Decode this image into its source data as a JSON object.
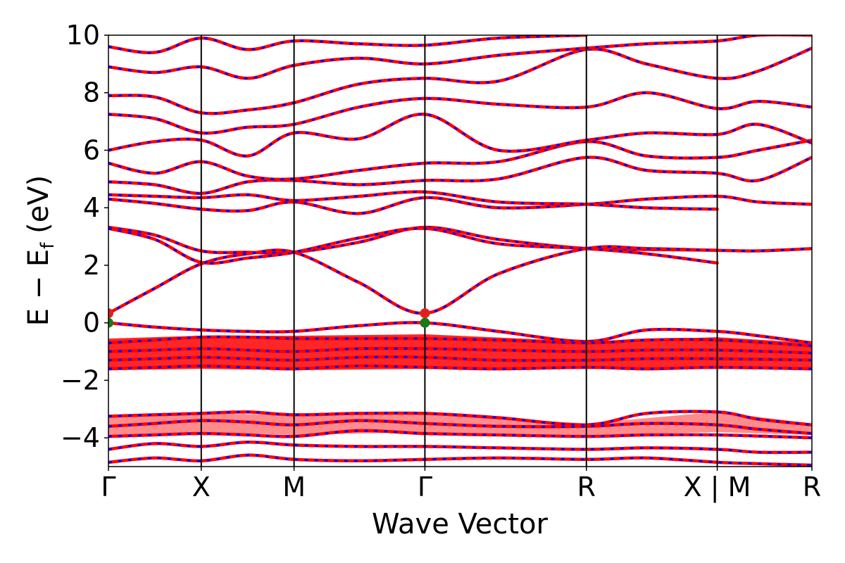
{
  "chart_data": {
    "type": "line",
    "title": "",
    "xlabel": "Wave Vector",
    "ylabel": "E − E_f (eV)",
    "ylabel_parts": {
      "main": "E − E",
      "sub": "f",
      "unit": " (eV)"
    },
    "ylim": [
      -5,
      10
    ],
    "yticks": [
      -4,
      -2,
      0,
      2,
      4,
      6,
      8,
      10
    ],
    "ytick_labels": [
      "−4",
      "−2",
      "0",
      "2",
      "4",
      "6",
      "8",
      "10"
    ],
    "xlim": [
      0,
      7.58
    ],
    "kpath": [
      {
        "label": "Γ",
        "x": 0
      },
      {
        "label": "X",
        "x": 1.0
      },
      {
        "label": "M",
        "x": 2.0
      },
      {
        "label": "Γ",
        "x": 3.41
      },
      {
        "label": "R",
        "x": 5.15
      },
      {
        "label": "X | M",
        "x": 6.56
      },
      {
        "label": "R",
        "x": 7.58
      }
    ],
    "grid": false,
    "colors": {
      "band_primary": "#ff0000",
      "band_dash": "#0000ff",
      "vbm_marker": "#1a7a1a",
      "cbm_marker": "#e02020"
    },
    "extrema": {
      "vbm": [
        {
          "x": 0,
          "y": 0.0
        },
        {
          "x": 3.41,
          "y": 0.0
        }
      ],
      "cbm": [
        {
          "x": 0,
          "y": 0.33
        },
        {
          "x": 3.41,
          "y": 0.33
        }
      ]
    },
    "series": [
      {
        "values": [
          [
            0,
            3.32
          ],
          [
            0.5,
            3.05
          ],
          [
            1.0,
            2.5
          ],
          [
            1.5,
            2.45
          ],
          [
            2.0,
            2.45
          ],
          [
            2.7,
            2.8
          ],
          [
            3.41,
            3.32
          ],
          [
            4.2,
            2.9
          ],
          [
            5.15,
            2.58
          ],
          [
            5.8,
            2.55
          ],
          [
            6.56,
            2.52
          ],
          [
            7.0,
            2.5
          ],
          [
            7.58,
            2.58
          ]
        ]
      },
      {
        "values": [
          [
            0,
            3.28
          ],
          [
            0.5,
            2.9
          ],
          [
            1.0,
            2.1
          ],
          [
            1.5,
            2.25
          ],
          [
            2.0,
            2.45
          ],
          [
            2.7,
            2.95
          ],
          [
            3.41,
            3.28
          ],
          [
            4.2,
            2.75
          ],
          [
            5.15,
            2.58
          ],
          [
            5.8,
            2.4
          ],
          [
            6.56,
            2.08
          ]
        ]
      },
      {
        "values": [
          [
            0,
            0.33
          ],
          [
            0.5,
            1.2
          ],
          [
            1.0,
            2.05
          ],
          [
            1.5,
            2.4
          ],
          [
            2.0,
            2.45
          ],
          [
            2.7,
            1.4
          ],
          [
            3.41,
            0.33
          ],
          [
            4.2,
            1.7
          ],
          [
            5.15,
            2.58
          ],
          [
            5.8,
            2.58
          ],
          [
            6.56,
            2.52
          ]
        ]
      },
      {
        "values": [
          [
            0,
            4.3
          ],
          [
            0.5,
            4.15
          ],
          [
            1.0,
            3.95
          ],
          [
            1.5,
            3.9
          ],
          [
            2.0,
            4.2
          ],
          [
            2.7,
            3.8
          ],
          [
            3.41,
            4.35
          ],
          [
            4.2,
            4.0
          ],
          [
            5.15,
            4.12
          ],
          [
            5.8,
            4.3
          ],
          [
            6.56,
            4.4
          ],
          [
            7.0,
            4.2
          ],
          [
            7.58,
            4.12
          ]
        ]
      },
      {
        "values": [
          [
            0,
            4.45
          ],
          [
            0.5,
            4.4
          ],
          [
            1.0,
            4.35
          ],
          [
            1.5,
            4.45
          ],
          [
            2.0,
            4.25
          ],
          [
            2.7,
            4.4
          ],
          [
            3.41,
            4.55
          ],
          [
            4.2,
            4.2
          ],
          [
            5.15,
            4.12
          ],
          [
            5.8,
            4.0
          ],
          [
            6.56,
            3.95
          ]
        ]
      },
      {
        "values": [
          [
            0,
            4.9
          ],
          [
            0.5,
            4.8
          ],
          [
            1.0,
            4.5
          ],
          [
            1.5,
            4.9
          ],
          [
            2.0,
            4.95
          ],
          [
            2.7,
            4.8
          ],
          [
            3.41,
            4.95
          ],
          [
            4.2,
            5.0
          ],
          [
            5.15,
            5.75
          ],
          [
            5.8,
            5.3
          ],
          [
            6.56,
            5.2
          ],
          [
            7.0,
            4.95
          ],
          [
            7.58,
            5.75
          ]
        ]
      },
      {
        "values": [
          [
            0,
            5.55
          ],
          [
            0.5,
            5.2
          ],
          [
            1.0,
            5.6
          ],
          [
            1.5,
            5.1
          ],
          [
            2.0,
            5.0
          ],
          [
            2.7,
            5.3
          ],
          [
            3.41,
            5.55
          ],
          [
            4.2,
            5.6
          ],
          [
            5.15,
            6.3
          ],
          [
            5.8,
            5.8
          ],
          [
            6.56,
            5.75
          ],
          [
            7.0,
            6.0
          ],
          [
            7.58,
            6.35
          ]
        ]
      },
      {
        "values": [
          [
            0,
            6.0
          ],
          [
            0.5,
            6.3
          ],
          [
            1.0,
            6.35
          ],
          [
            1.5,
            5.8
          ],
          [
            2.0,
            6.6
          ],
          [
            2.7,
            6.4
          ],
          [
            3.41,
            7.25
          ],
          [
            4.2,
            6.0
          ],
          [
            5.15,
            6.35
          ],
          [
            5.8,
            6.6
          ],
          [
            6.56,
            6.55
          ],
          [
            7.0,
            6.9
          ],
          [
            7.58,
            6.25
          ]
        ]
      },
      {
        "values": [
          [
            0,
            7.25
          ],
          [
            0.5,
            7.1
          ],
          [
            1.0,
            6.6
          ],
          [
            1.5,
            6.8
          ],
          [
            2.0,
            6.9
          ],
          [
            2.7,
            7.5
          ],
          [
            3.41,
            7.8
          ],
          [
            4.2,
            7.6
          ],
          [
            5.15,
            7.5
          ],
          [
            5.8,
            8.0
          ],
          [
            6.56,
            7.45
          ],
          [
            7.0,
            7.7
          ],
          [
            7.58,
            7.5
          ]
        ]
      },
      {
        "values": [
          [
            0,
            7.9
          ],
          [
            0.5,
            7.85
          ],
          [
            1.0,
            7.3
          ],
          [
            1.5,
            7.4
          ],
          [
            2.0,
            7.65
          ],
          [
            2.7,
            8.3
          ],
          [
            3.41,
            8.5
          ],
          [
            4.2,
            8.4
          ],
          [
            5.15,
            9.5
          ],
          [
            5.8,
            9.0
          ],
          [
            6.56,
            8.5
          ],
          [
            7.0,
            8.75
          ],
          [
            7.58,
            9.55
          ]
        ]
      },
      {
        "values": [
          [
            0,
            8.9
          ],
          [
            0.5,
            8.7
          ],
          [
            1.0,
            8.9
          ],
          [
            1.5,
            8.5
          ],
          [
            2.0,
            8.95
          ],
          [
            2.7,
            9.2
          ],
          [
            3.41,
            9.0
          ],
          [
            4.2,
            9.3
          ],
          [
            5.15,
            9.55
          ],
          [
            5.8,
            9.7
          ],
          [
            6.56,
            9.8
          ],
          [
            7.0,
            10.0
          ],
          [
            7.58,
            10.0
          ]
        ]
      },
      {
        "values": [
          [
            0,
            9.6
          ],
          [
            0.5,
            9.4
          ],
          [
            1.0,
            9.9
          ],
          [
            1.5,
            9.5
          ],
          [
            2.0,
            9.8
          ],
          [
            2.7,
            9.7
          ],
          [
            3.41,
            9.65
          ],
          [
            4.2,
            9.9
          ],
          [
            5.15,
            10.0
          ]
        ]
      },
      {
        "values": [
          [
            0,
            0.0
          ],
          [
            0.5,
            -0.15
          ],
          [
            1.0,
            -0.25
          ],
          [
            1.5,
            -0.3
          ],
          [
            2.0,
            -0.3
          ],
          [
            2.7,
            -0.1
          ],
          [
            3.41,
            0.0
          ],
          [
            4.2,
            -0.3
          ],
          [
            5.15,
            -0.65
          ],
          [
            5.8,
            -0.25
          ],
          [
            6.56,
            -0.3
          ],
          [
            7.0,
            -0.45
          ],
          [
            7.58,
            -0.7
          ]
        ]
      },
      {
        "values": [
          [
            0,
            -0.7
          ],
          [
            0.5,
            -0.6
          ],
          [
            1.0,
            -0.5
          ],
          [
            1.5,
            -0.5
          ],
          [
            2.0,
            -0.55
          ],
          [
            2.7,
            -0.55
          ],
          [
            3.41,
            -0.55
          ],
          [
            4.2,
            -0.6
          ],
          [
            5.15,
            -0.7
          ],
          [
            5.8,
            -0.6
          ],
          [
            6.56,
            -0.6
          ],
          [
            7.58,
            -0.8
          ]
        ]
      },
      {
        "values": [
          [
            0,
            -1.0
          ],
          [
            0.5,
            -0.95
          ],
          [
            1.0,
            -0.9
          ],
          [
            1.5,
            -0.95
          ],
          [
            2.0,
            -1.0
          ],
          [
            2.7,
            -0.9
          ],
          [
            3.41,
            -0.9
          ],
          [
            4.2,
            -0.95
          ],
          [
            5.15,
            -1.0
          ],
          [
            5.8,
            -0.95
          ],
          [
            6.56,
            -0.95
          ],
          [
            7.58,
            -1.05
          ]
        ]
      },
      {
        "values": [
          [
            0,
            -1.3
          ],
          [
            0.5,
            -1.25
          ],
          [
            1.0,
            -1.2
          ],
          [
            1.5,
            -1.25
          ],
          [
            2.0,
            -1.3
          ],
          [
            2.7,
            -1.2
          ],
          [
            3.41,
            -1.2
          ],
          [
            4.2,
            -1.3
          ],
          [
            5.15,
            -1.3
          ],
          [
            5.8,
            -1.25
          ],
          [
            6.56,
            -1.25
          ],
          [
            7.58,
            -1.3
          ]
        ]
      },
      {
        "values": [
          [
            0,
            -1.6
          ],
          [
            0.5,
            -1.55
          ],
          [
            1.0,
            -1.5
          ],
          [
            1.5,
            -1.55
          ],
          [
            2.0,
            -1.6
          ],
          [
            2.7,
            -1.5
          ],
          [
            3.41,
            -1.55
          ],
          [
            4.2,
            -1.6
          ],
          [
            5.15,
            -1.55
          ],
          [
            5.8,
            -1.6
          ],
          [
            6.56,
            -1.55
          ],
          [
            7.58,
            -1.6
          ]
        ]
      },
      {
        "values": [
          [
            0,
            -3.25
          ],
          [
            0.5,
            -3.2
          ],
          [
            1.0,
            -3.15
          ],
          [
            1.5,
            -3.1
          ],
          [
            2.0,
            -3.2
          ],
          [
            2.7,
            -3.15
          ],
          [
            3.41,
            -3.15
          ],
          [
            4.2,
            -3.3
          ],
          [
            5.15,
            -3.55
          ],
          [
            5.8,
            -3.15
          ],
          [
            6.56,
            -3.1
          ],
          [
            7.0,
            -3.35
          ],
          [
            7.58,
            -3.55
          ]
        ]
      },
      {
        "values": [
          [
            0,
            -3.6
          ],
          [
            0.5,
            -3.5
          ],
          [
            1.0,
            -3.4
          ],
          [
            1.5,
            -3.45
          ],
          [
            2.0,
            -3.55
          ],
          [
            2.7,
            -3.4
          ],
          [
            3.41,
            -3.5
          ],
          [
            4.2,
            -3.6
          ],
          [
            5.15,
            -3.6
          ],
          [
            5.8,
            -3.5
          ],
          [
            6.56,
            -3.55
          ],
          [
            7.0,
            -3.7
          ],
          [
            7.58,
            -3.85
          ]
        ]
      },
      {
        "values": [
          [
            0,
            -3.95
          ],
          [
            0.5,
            -3.9
          ],
          [
            1.0,
            -3.85
          ],
          [
            1.5,
            -3.9
          ],
          [
            2.0,
            -3.95
          ],
          [
            2.7,
            -3.75
          ],
          [
            3.41,
            -3.85
          ],
          [
            4.2,
            -3.9
          ],
          [
            5.15,
            -3.95
          ],
          [
            5.8,
            -3.9
          ],
          [
            6.56,
            -3.9
          ],
          [
            7.58,
            -4.0
          ]
        ]
      },
      {
        "values": [
          [
            0,
            -4.4
          ],
          [
            0.5,
            -4.2
          ],
          [
            1.0,
            -4.3
          ],
          [
            1.5,
            -4.15
          ],
          [
            2.0,
            -4.25
          ],
          [
            2.7,
            -4.3
          ],
          [
            3.41,
            -4.3
          ],
          [
            4.2,
            -4.35
          ],
          [
            5.15,
            -4.4
          ],
          [
            5.8,
            -4.35
          ],
          [
            6.56,
            -4.4
          ],
          [
            7.0,
            -4.5
          ],
          [
            7.58,
            -4.5
          ]
        ]
      },
      {
        "values": [
          [
            0,
            -4.85
          ],
          [
            0.5,
            -4.7
          ],
          [
            1.0,
            -4.8
          ],
          [
            1.5,
            -4.6
          ],
          [
            2.0,
            -4.75
          ],
          [
            2.7,
            -4.8
          ],
          [
            3.41,
            -4.75
          ],
          [
            4.2,
            -4.7
          ],
          [
            5.15,
            -4.75
          ],
          [
            5.8,
            -4.7
          ],
          [
            6.56,
            -4.85
          ],
          [
            7.0,
            -4.9
          ],
          [
            7.58,
            -4.95
          ]
        ]
      }
    ]
  }
}
